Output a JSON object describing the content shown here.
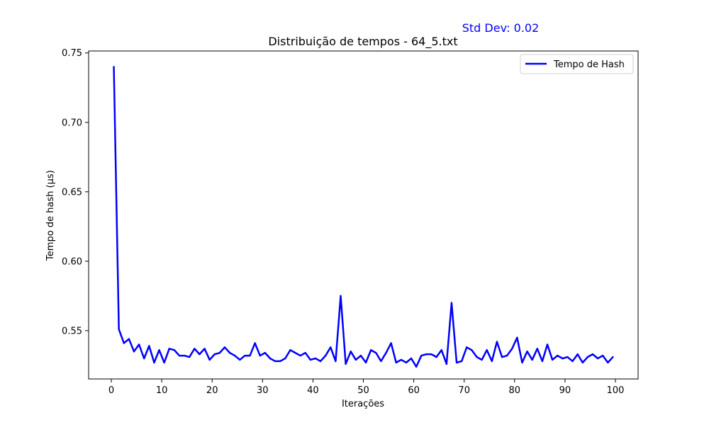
{
  "chart_data": {
    "type": "line",
    "title": "Distribuição de tempos - 64_5.txt",
    "xlabel": "Iterações",
    "ylabel": "Tempo de hash (µs)",
    "annotation": "Std Dev: 0.02",
    "annotation_color": "#0000ff",
    "line_color": "#0000ff",
    "legend_position": "top-right",
    "grid": false,
    "xlim": [
      -4.5,
      104.5
    ],
    "ylim": [
      0.5152,
      0.7514
    ],
    "xticks": [
      0,
      10,
      20,
      30,
      40,
      50,
      60,
      70,
      80,
      90,
      100
    ],
    "yticks": [
      0.55,
      0.6,
      0.65,
      0.7,
      0.75
    ],
    "ytick_labels": [
      "0.55",
      "0.60",
      "0.65",
      "0.70",
      "0.75"
    ],
    "series": [
      {
        "name": "Tempo de Hash",
        "x": [
          0.5,
          1.5,
          2.5,
          3.5,
          4.5,
          5.5,
          6.5,
          7.5,
          8.5,
          9.5,
          10.5,
          11.5,
          12.5,
          13.5,
          14.5,
          15.5,
          16.5,
          17.5,
          18.5,
          19.5,
          20.5,
          21.5,
          22.5,
          23.5,
          24.5,
          25.5,
          26.5,
          27.5,
          28.5,
          29.5,
          30.5,
          31.5,
          32.5,
          33.5,
          34.5,
          35.5,
          36.5,
          37.5,
          38.5,
          39.5,
          40.5,
          41.5,
          42.5,
          43.5,
          44.5,
          45.5,
          46.5,
          47.5,
          48.5,
          49.5,
          50.5,
          51.5,
          52.5,
          53.5,
          54.5,
          55.5,
          56.5,
          57.5,
          58.5,
          59.5,
          60.5,
          61.5,
          62.5,
          63.5,
          64.5,
          65.5,
          66.5,
          67.5,
          68.5,
          69.5,
          70.5,
          71.5,
          72.5,
          73.5,
          74.5,
          75.5,
          76.5,
          77.5,
          78.5,
          79.5,
          80.5,
          81.5,
          82.5,
          83.5,
          84.5,
          85.5,
          86.5,
          87.5,
          88.5,
          89.5,
          90.5,
          91.5,
          92.5,
          93.5,
          94.5,
          95.5,
          96.5,
          97.5,
          98.5,
          99.5
        ],
        "values": [
          0.74,
          0.551,
          0.541,
          0.544,
          0.535,
          0.54,
          0.53,
          0.539,
          0.527,
          0.536,
          0.527,
          0.537,
          0.536,
          0.532,
          0.532,
          0.531,
          0.537,
          0.533,
          0.537,
          0.529,
          0.533,
          0.534,
          0.538,
          0.534,
          0.532,
          0.529,
          0.532,
          0.532,
          0.541,
          0.532,
          0.534,
          0.53,
          0.528,
          0.528,
          0.53,
          0.536,
          0.534,
          0.532,
          0.534,
          0.529,
          0.53,
          0.528,
          0.532,
          0.538,
          0.528,
          0.575,
          0.526,
          0.535,
          0.529,
          0.532,
          0.527,
          0.536,
          0.534,
          0.528,
          0.534,
          0.541,
          0.527,
          0.529,
          0.527,
          0.53,
          0.524,
          0.532,
          0.533,
          0.533,
          0.531,
          0.536,
          0.526,
          0.57,
          0.527,
          0.528,
          0.538,
          0.536,
          0.531,
          0.529,
          0.536,
          0.528,
          0.542,
          0.531,
          0.532,
          0.537,
          0.545,
          0.527,
          0.535,
          0.529,
          0.537,
          0.528,
          0.54,
          0.529,
          0.532,
          0.53,
          0.531,
          0.528,
          0.533,
          0.527,
          0.531,
          0.533,
          0.53,
          0.532,
          0.527,
          0.531
        ]
      }
    ]
  }
}
